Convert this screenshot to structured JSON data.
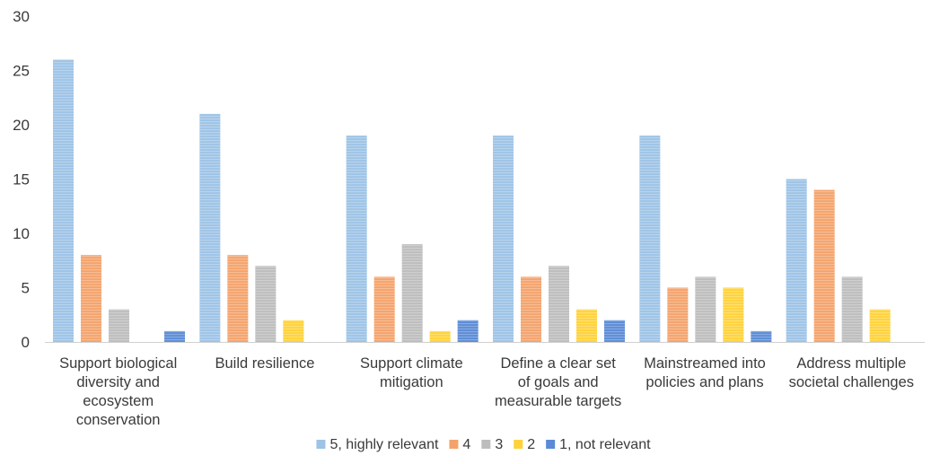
{
  "chart_data": {
    "type": "bar",
    "title": "",
    "xlabel": "",
    "ylabel": "",
    "ylim": [
      0,
      30
    ],
    "yticks": [
      "0",
      "5",
      "10",
      "15",
      "20",
      "25",
      "30"
    ],
    "grid": false,
    "legend_position": "bottom",
    "categories": [
      [
        "Support biological",
        "diversity and",
        "ecosystem",
        "conservation"
      ],
      [
        "Build resilience"
      ],
      [
        "Support climate",
        "mitigation"
      ],
      [
        "Define a clear set",
        "of goals and",
        "measurable targets"
      ],
      [
        "Mainstreamed into",
        "policies and plans"
      ],
      [
        "Address multiple",
        "societal challenges"
      ]
    ],
    "series": [
      {
        "name": "5, highly relevant",
        "color": "#9dc3e6",
        "values": [
          26,
          21,
          19,
          19,
          19,
          15
        ]
      },
      {
        "name": "4",
        "color": "#f4a26b",
        "values": [
          8,
          8,
          6,
          6,
          5,
          14
        ]
      },
      {
        "name": "3",
        "color": "#bdbdbd",
        "values": [
          3,
          7,
          9,
          7,
          6,
          6
        ]
      },
      {
        "name": "2",
        "color": "#ffd23a",
        "values": [
          0,
          2,
          1,
          3,
          5,
          3
        ]
      },
      {
        "name": "1, not relevant",
        "color": "#5b8bd6",
        "values": [
          1,
          0,
          2,
          2,
          1,
          0
        ]
      }
    ]
  }
}
